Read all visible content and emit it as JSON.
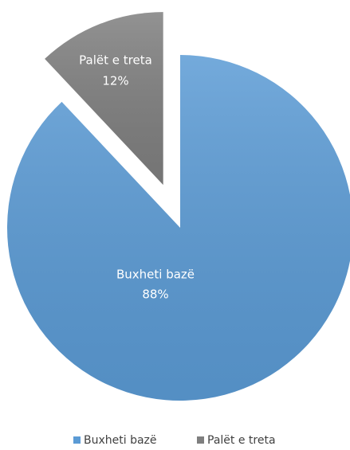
{
  "chart_data": {
    "type": "pie",
    "categories": [
      "Buxheti bazë",
      "Palët e treta"
    ],
    "values": [
      88,
      12
    ],
    "value_labels": [
      "88%",
      "12%"
    ],
    "colors": [
      "#5b9bd5",
      "#7f7f7f"
    ],
    "legend": "bottom"
  }
}
